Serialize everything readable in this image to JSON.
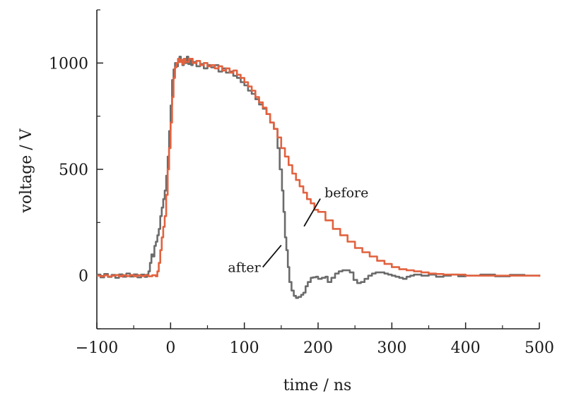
{
  "chart_data": {
    "type": "line",
    "xlabel": "time / ns",
    "ylabel": "voltage / V",
    "xlim": [
      -100,
      500
    ],
    "ylim": [
      -250,
      1250
    ],
    "x_ticks": [
      -100,
      0,
      100,
      200,
      300,
      400,
      500
    ],
    "x_tick_labels": [
      "−100",
      "0",
      "100",
      "200",
      "300",
      "400",
      "500"
    ],
    "y_ticks": [
      0,
      500,
      1000
    ],
    "y_tick_labels": [
      "0",
      "500",
      "1000"
    ],
    "grid": false,
    "legend": "none",
    "series": [
      {
        "name": "after",
        "color": "#6b6b6b",
        "points": [
          [
            -100,
            5
          ],
          [
            -95,
            -8
          ],
          [
            -90,
            8
          ],
          [
            -85,
            -6
          ],
          [
            -80,
            4
          ],
          [
            -75,
            -10
          ],
          [
            -70,
            6
          ],
          [
            -65,
            -5
          ],
          [
            -60,
            10
          ],
          [
            -55,
            -4
          ],
          [
            -50,
            6
          ],
          [
            -45,
            -8
          ],
          [
            -40,
            5
          ],
          [
            -35,
            -6
          ],
          [
            -32,
            5
          ],
          [
            -30,
            20
          ],
          [
            -28,
            60
          ],
          [
            -26,
            100
          ],
          [
            -24,
            90
          ],
          [
            -22,
            140
          ],
          [
            -20,
            160
          ],
          [
            -18,
            190
          ],
          [
            -16,
            220
          ],
          [
            -14,
            280
          ],
          [
            -12,
            320
          ],
          [
            -10,
            360
          ],
          [
            -8,
            400
          ],
          [
            -6,
            470
          ],
          [
            -4,
            560
          ],
          [
            -2,
            680
          ],
          [
            0,
            800
          ],
          [
            2,
            920
          ],
          [
            4,
            970
          ],
          [
            6,
            1000
          ],
          [
            8,
            985
          ],
          [
            10,
            1005
          ],
          [
            12,
            1030
          ],
          [
            14,
            1010
          ],
          [
            16,
            990
          ],
          [
            18,
            1020
          ],
          [
            20,
            1000
          ],
          [
            22,
            1030
          ],
          [
            24,
            995
          ],
          [
            26,
            1015
          ],
          [
            28,
            990
          ],
          [
            30,
            1005
          ],
          [
            35,
            985
          ],
          [
            40,
            995
          ],
          [
            45,
            975
          ],
          [
            50,
            990
          ],
          [
            55,
            980
          ],
          [
            60,
            990
          ],
          [
            65,
            960
          ],
          [
            70,
            975
          ],
          [
            75,
            955
          ],
          [
            80,
            960
          ],
          [
            85,
            940
          ],
          [
            90,
            930
          ],
          [
            95,
            910
          ],
          [
            100,
            895
          ],
          [
            105,
            870
          ],
          [
            110,
            855
          ],
          [
            115,
            830
          ],
          [
            120,
            805
          ],
          [
            125,
            785
          ],
          [
            130,
            760
          ],
          [
            135,
            720
          ],
          [
            140,
            690
          ],
          [
            145,
            600
          ],
          [
            148,
            500
          ],
          [
            151,
            400
          ],
          [
            153,
            300
          ],
          [
            155,
            180
          ],
          [
            157,
            120
          ],
          [
            159,
            40
          ],
          [
            161,
            -30
          ],
          [
            164,
            -70
          ],
          [
            167,
            -95
          ],
          [
            170,
            -105
          ],
          [
            173,
            -100
          ],
          [
            177,
            -90
          ],
          [
            180,
            -80
          ],
          [
            183,
            -50
          ],
          [
            186,
            -30
          ],
          [
            190,
            -10
          ],
          [
            193,
            -8
          ],
          [
            197,
            -5
          ],
          [
            200,
            -15
          ],
          [
            205,
            -10
          ],
          [
            210,
            -5
          ],
          [
            213,
            -30
          ],
          [
            218,
            -10
          ],
          [
            223,
            10
          ],
          [
            228,
            20
          ],
          [
            233,
            25
          ],
          [
            238,
            25
          ],
          [
            243,
            15
          ],
          [
            248,
            -20
          ],
          [
            253,
            -35
          ],
          [
            258,
            -30
          ],
          [
            263,
            -15
          ],
          [
            268,
            0
          ],
          [
            273,
            10
          ],
          [
            278,
            15
          ],
          [
            283,
            15
          ],
          [
            290,
            10
          ],
          [
            295,
            5
          ],
          [
            300,
            0
          ],
          [
            305,
            -5
          ],
          [
            310,
            -10
          ],
          [
            315,
            -15
          ],
          [
            320,
            -5
          ],
          [
            325,
            0
          ],
          [
            330,
            5
          ],
          [
            340,
            0
          ],
          [
            350,
            5
          ],
          [
            360,
            -5
          ],
          [
            370,
            0
          ],
          [
            380,
            5
          ],
          [
            390,
            -3
          ],
          [
            400,
            0
          ],
          [
            420,
            5
          ],
          [
            440,
            -3
          ],
          [
            460,
            4
          ],
          [
            480,
            0
          ],
          [
            500,
            5
          ]
        ]
      },
      {
        "name": "before",
        "color": "#e2623f",
        "points": [
          [
            -100,
            0
          ],
          [
            -95,
            -3
          ],
          [
            -90,
            2
          ],
          [
            -85,
            -4
          ],
          [
            -80,
            0
          ],
          [
            -75,
            3
          ],
          [
            -70,
            -3
          ],
          [
            -65,
            2
          ],
          [
            -60,
            -2
          ],
          [
            -55,
            3
          ],
          [
            -50,
            -3
          ],
          [
            -45,
            2
          ],
          [
            -40,
            -2
          ],
          [
            -35,
            2
          ],
          [
            -30,
            -3
          ],
          [
            -25,
            2
          ],
          [
            -20,
            -3
          ],
          [
            -18,
            20
          ],
          [
            -16,
            60
          ],
          [
            -14,
            120
          ],
          [
            -12,
            180
          ],
          [
            -10,
            230
          ],
          [
            -8,
            280
          ],
          [
            -6,
            380
          ],
          [
            -4,
            500
          ],
          [
            -2,
            600
          ],
          [
            0,
            720
          ],
          [
            2,
            840
          ],
          [
            4,
            930
          ],
          [
            6,
            980
          ],
          [
            8,
            1000
          ],
          [
            10,
            1020
          ],
          [
            12,
            1005
          ],
          [
            14,
            1015
          ],
          [
            16,
            995
          ],
          [
            18,
            1020
          ],
          [
            20,
            1005
          ],
          [
            25,
            1020
          ],
          [
            30,
            1000
          ],
          [
            35,
            1010
          ],
          [
            40,
            990
          ],
          [
            45,
            1000
          ],
          [
            50,
            985
          ],
          [
            55,
            990
          ],
          [
            60,
            975
          ],
          [
            65,
            985
          ],
          [
            70,
            965
          ],
          [
            75,
            975
          ],
          [
            80,
            955
          ],
          [
            85,
            965
          ],
          [
            90,
            945
          ],
          [
            95,
            930
          ],
          [
            100,
            910
          ],
          [
            105,
            890
          ],
          [
            110,
            870
          ],
          [
            115,
            840
          ],
          [
            120,
            815
          ],
          [
            125,
            790
          ],
          [
            130,
            760
          ],
          [
            135,
            720
          ],
          [
            140,
            690
          ],
          [
            145,
            650
          ],
          [
            150,
            600
          ],
          [
            155,
            560
          ],
          [
            160,
            520
          ],
          [
            165,
            480
          ],
          [
            170,
            450
          ],
          [
            175,
            420
          ],
          [
            180,
            390
          ],
          [
            185,
            360
          ],
          [
            190,
            340
          ],
          [
            195,
            310
          ],
          [
            200,
            300
          ],
          [
            210,
            260
          ],
          [
            220,
            220
          ],
          [
            230,
            190
          ],
          [
            240,
            160
          ],
          [
            250,
            130
          ],
          [
            260,
            110
          ],
          [
            270,
            90
          ],
          [
            280,
            70
          ],
          [
            290,
            55
          ],
          [
            300,
            40
          ],
          [
            310,
            30
          ],
          [
            320,
            25
          ],
          [
            330,
            20
          ],
          [
            340,
            15
          ],
          [
            350,
            10
          ],
          [
            360,
            8
          ],
          [
            370,
            5
          ],
          [
            380,
            5
          ],
          [
            400,
            0
          ],
          [
            420,
            0
          ],
          [
            440,
            0
          ],
          [
            460,
            0
          ],
          [
            480,
            0
          ],
          [
            500,
            -5
          ]
        ]
      }
    ],
    "annotations": [
      {
        "text": "after",
        "series": "after",
        "from": [
          150,
          143
        ],
        "to": [
          125,
          40
        ]
      },
      {
        "text": "before",
        "series": "before",
        "from": [
          181,
          232
        ],
        "to": [
          203,
          362
        ]
      }
    ]
  }
}
